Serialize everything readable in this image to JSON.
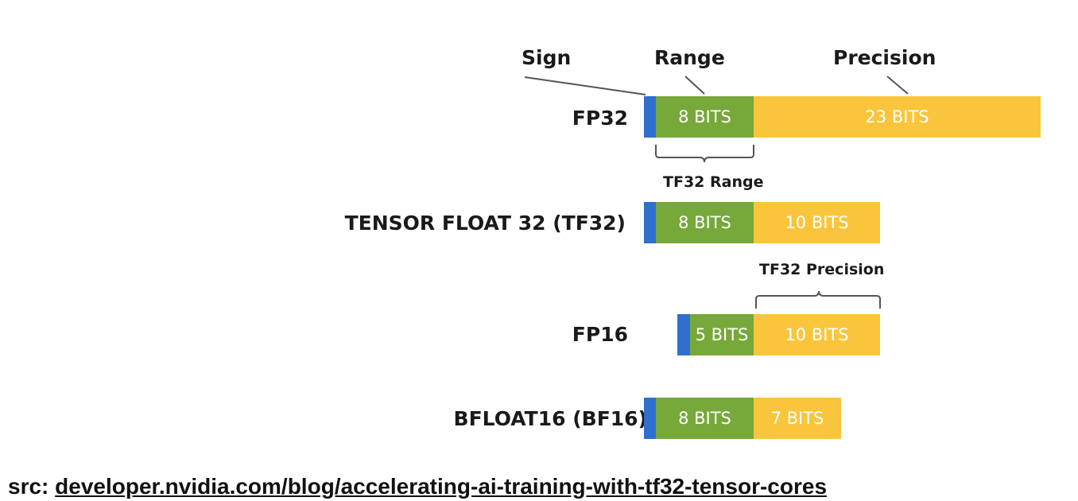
{
  "labels": {
    "sign": "Sign",
    "range": "Range",
    "precision": "Precision"
  },
  "brackets": {
    "tf32_range": "TF32 Range",
    "tf32_precision": "TF32 Precision"
  },
  "formats": [
    {
      "name": "FP32",
      "exponent": "8 BITS",
      "mantissa": "23 BITS"
    },
    {
      "name": "TENSOR FLOAT 32 (TF32)",
      "exponent": "8 BITS",
      "mantissa": "10 BITS"
    },
    {
      "name": "FP16",
      "exponent": "5 BITS",
      "mantissa": "10 BITS"
    },
    {
      "name": "BFLOAT16 (BF16)",
      "exponent": "8 BITS",
      "mantissa": "7 BITS"
    }
  ],
  "source": {
    "prefix": "src:",
    "link": "developer.nvidia.com/blog/accelerating-ai-training-with-tf32-tensor-cores"
  },
  "colors": {
    "sign": "#2f6fce",
    "exponent": "#77a83a",
    "mantissa": "#f9c53c"
  }
}
